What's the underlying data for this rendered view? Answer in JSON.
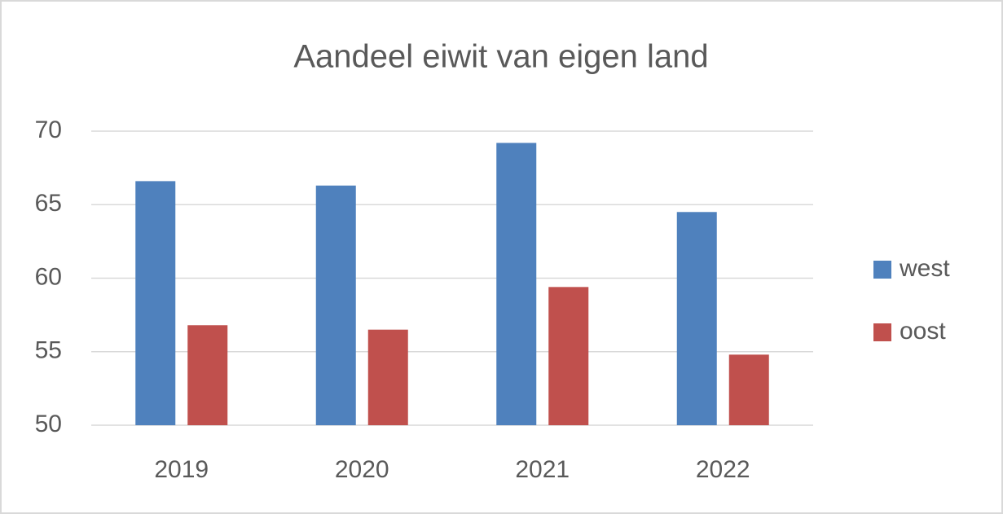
{
  "chart_data": {
    "type": "bar",
    "title": "Aandeel eiwit van eigen land",
    "categories": [
      "2019",
      "2020",
      "2021",
      "2022"
    ],
    "series": [
      {
        "name": "west",
        "color": "#4f81bd",
        "values": [
          66.6,
          66.3,
          69.2,
          64.5
        ]
      },
      {
        "name": "oost",
        "color": "#c0504d",
        "values": [
          56.8,
          56.5,
          59.4,
          54.8
        ]
      }
    ],
    "ylim": [
      50,
      70
    ],
    "yticks": [
      50,
      55,
      60,
      65,
      70
    ],
    "grid": true,
    "legend": "right"
  }
}
